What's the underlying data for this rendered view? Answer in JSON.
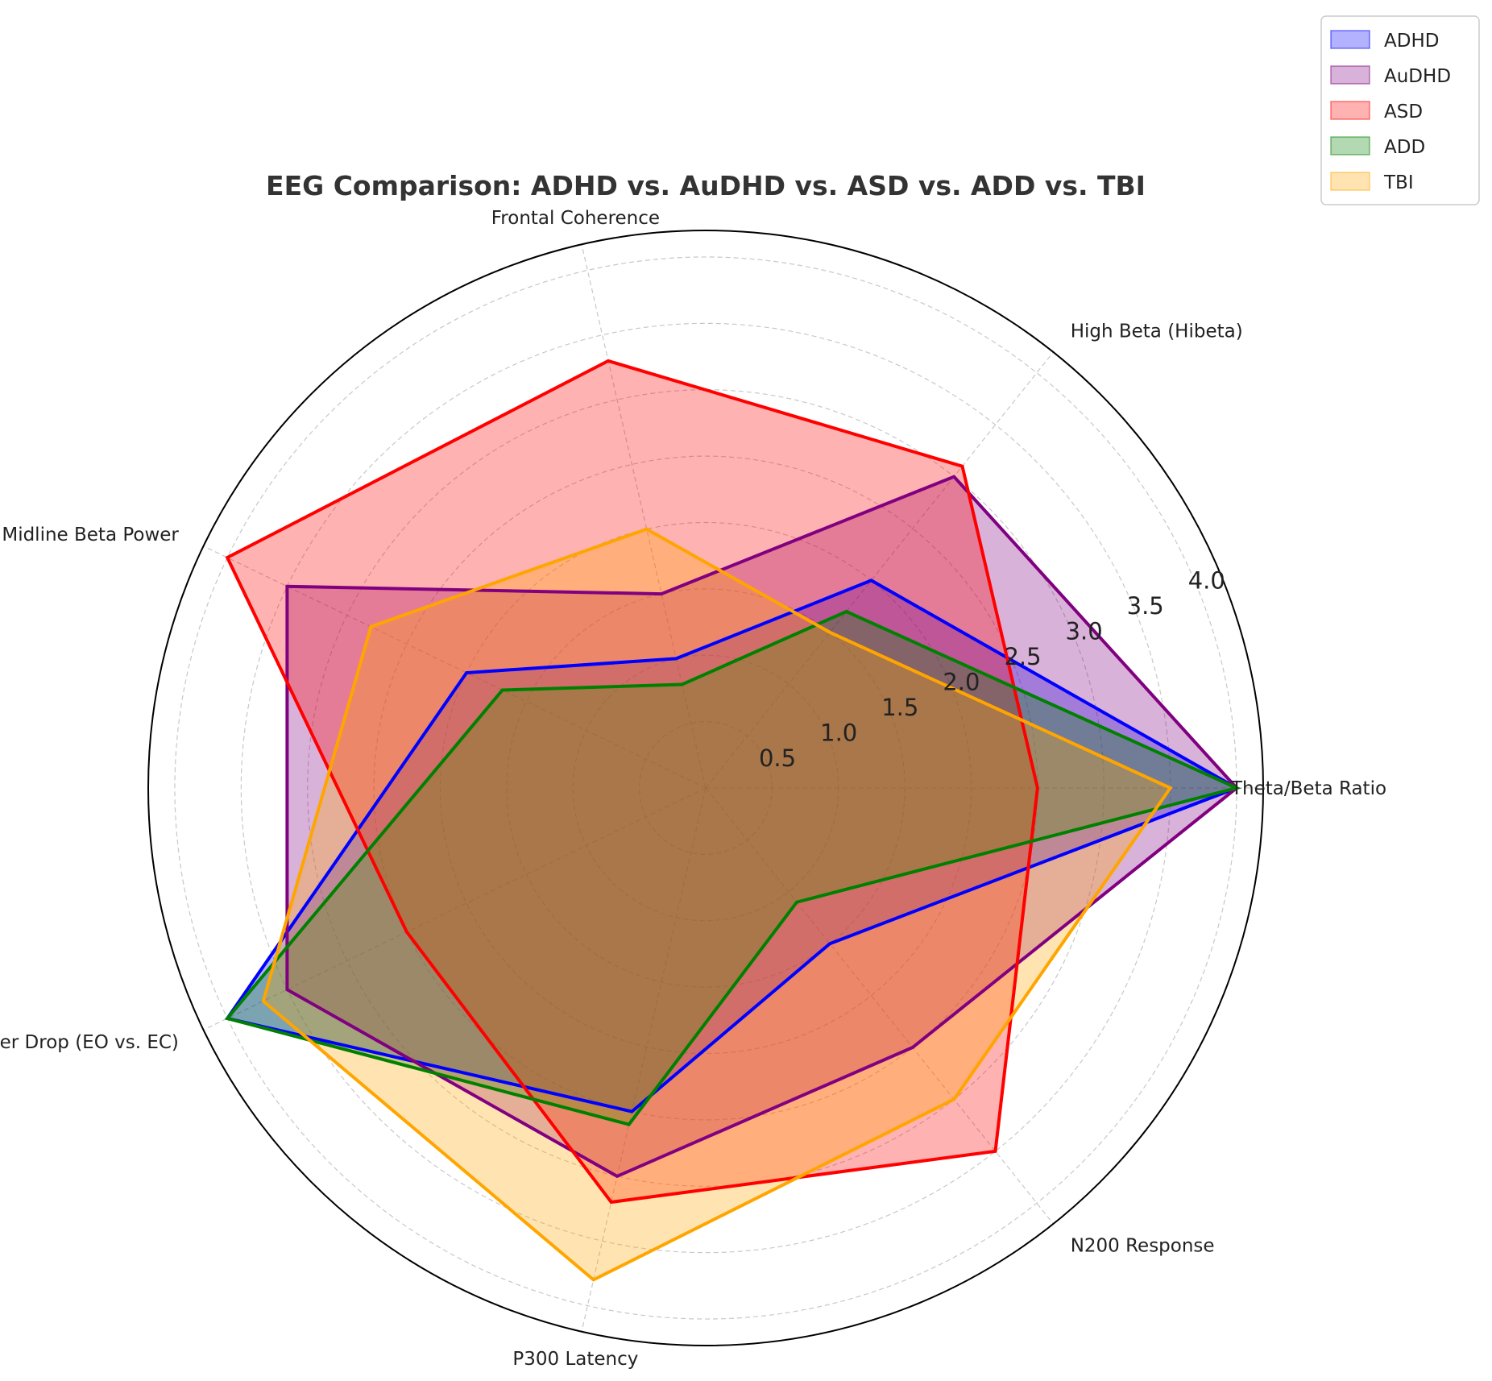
{
  "chart_data": {
    "type": "radar",
    "title": "EEG Comparison: ADHD vs. AuDHD vs. ASD vs. ADD vs. TBI",
    "categories": [
      "Theta/Beta Ratio",
      "High Beta (Hibeta)",
      "Frontal Coherence",
      "Midline Beta Power",
      "Alpha Power Drop (EO vs. EC)",
      "P300 Latency",
      "N200 Response"
    ],
    "rlim": [
      0,
      4.2
    ],
    "rticks": [
      0.5,
      1.0,
      1.5,
      2.0,
      2.5,
      3.0,
      3.5,
      4.0
    ],
    "rtick_labels": [
      "0.5",
      "1.0",
      "1.5",
      "2.0",
      "2.5",
      "3.0",
      "3.5",
      "4.0"
    ],
    "grid": true,
    "legend_position": "top-right",
    "series": [
      {
        "name": "ADHD",
        "color": "#0000ff",
        "values": [
          4.0,
          2.0,
          1.0,
          2.0,
          4.0,
          2.5,
          1.5
        ]
      },
      {
        "name": "AuDHD",
        "color": "#800080",
        "values": [
          4.0,
          3.0,
          1.5,
          3.5,
          3.5,
          3.0,
          2.5
        ]
      },
      {
        "name": "ASD",
        "color": "#ff0000",
        "values": [
          2.5,
          3.1,
          3.3,
          4.0,
          2.5,
          3.2,
          3.5
        ]
      },
      {
        "name": "ADD",
        "color": "#008000",
        "values": [
          4.0,
          1.7,
          0.8,
          1.7,
          4.0,
          2.6,
          1.1
        ]
      },
      {
        "name": "TBI",
        "color": "#ffa500",
        "values": [
          3.5,
          1.5,
          2.0,
          2.8,
          3.7,
          3.8,
          3.0
        ]
      }
    ]
  }
}
